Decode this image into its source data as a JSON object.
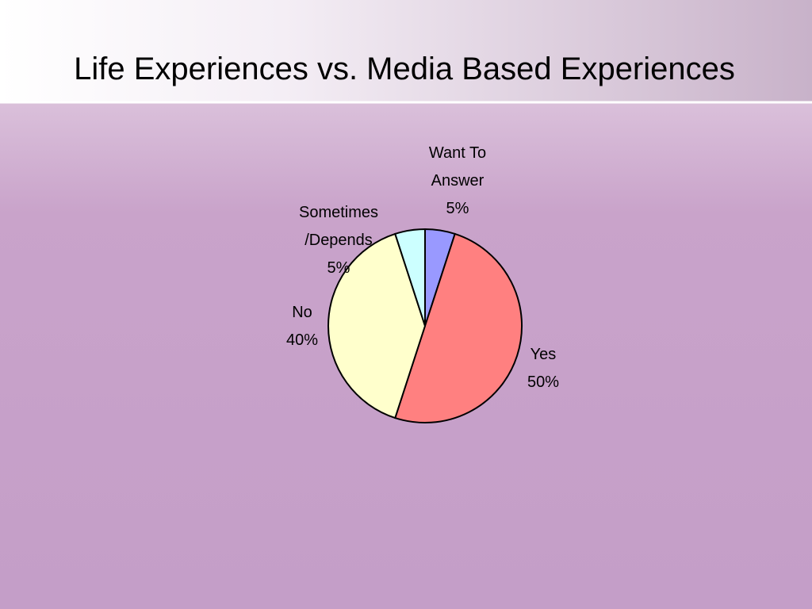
{
  "chart_data": {
    "type": "pie",
    "title": "Life Experiences vs. Media Based Experiences",
    "categories": [
      "Want To Answer",
      "Yes",
      "No",
      "Sometimes /Depends"
    ],
    "values": [
      5,
      50,
      40,
      5
    ],
    "value_labels": [
      "5%",
      "50%",
      "40%",
      "5%"
    ],
    "colors": [
      "#9999ff",
      "#ff8080",
      "#ffffcc",
      "#ccffff"
    ]
  }
}
